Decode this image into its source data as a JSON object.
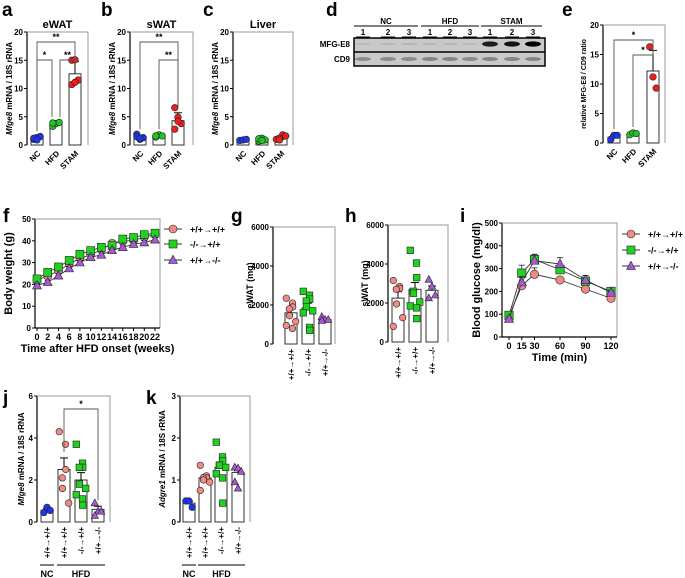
{
  "panel_letters": {
    "a": "a",
    "b": "b",
    "c": "c",
    "d": "d",
    "e": "e",
    "f": "f",
    "g": "g",
    "h": "h",
    "i": "i",
    "j": "j",
    "k": "k"
  },
  "colors": {
    "NC": "#1f35e8",
    "HFD": "#22c322",
    "STAM": "#ee1f1a",
    "wt_wt": "#f08a86",
    "ko_wt": "#1fd21f",
    "wt_ko": "#a45ad2"
  },
  "blot": {
    "groups": [
      "NC",
      "HFD",
      "STAM"
    ],
    "lanes": [
      "1",
      "2",
      "3",
      "1",
      "2",
      "3",
      "1",
      "2",
      "3"
    ],
    "rows": [
      "MFG-E8",
      "CD9"
    ],
    "mfge8_band_intensity": [
      0.08,
      0.1,
      0.1,
      0.1,
      0.1,
      0.08,
      0.85,
      0.9,
      1.0
    ],
    "cd9_band_intensity": [
      0.4,
      0.4,
      0.4,
      0.45,
      0.45,
      0.4,
      0.45,
      0.45,
      0.45
    ]
  },
  "chart_data": [
    {
      "id": "a",
      "type": "bar",
      "title": "eWAT",
      "ylabel_gene": "Mfge8",
      "ylabel_rest": " mRNA / 18S rRNA",
      "ylim": [
        0,
        20
      ],
      "yticks": [
        "0",
        "5",
        "10",
        "15",
        "20"
      ],
      "categories": [
        "NC",
        "HFD",
        "STAM"
      ],
      "means": [
        1.2,
        3.7,
        12.6
      ],
      "errors": [
        0.2,
        0.2,
        2.2
      ],
      "points": [
        [
          1.0,
          1.3,
          1.5,
          1.2,
          0.9
        ],
        [
          3.3,
          3.8,
          4.0,
          3.9
        ],
        [
          15.0,
          15.1,
          11.5,
          10.7,
          11.1
        ]
      ],
      "significance": [
        {
          "from": 0,
          "to": 2,
          "label": "**"
        },
        {
          "from": 0,
          "to": 1,
          "label": "*"
        },
        {
          "from": 1,
          "to": 2,
          "label": "**"
        }
      ]
    },
    {
      "id": "b",
      "type": "bar",
      "title": "sWAT",
      "ylabel_gene": "Mfge8",
      "ylabel_rest": " mRNA / 18S rRNA",
      "ylim": [
        0,
        20
      ],
      "yticks": [
        "0",
        "5",
        "10",
        "15",
        "20"
      ],
      "categories": [
        "NC",
        "HFD",
        "STAM"
      ],
      "means": [
        1.4,
        1.6,
        4.3
      ],
      "errors": [
        0.3,
        0.1,
        1.4
      ],
      "points": [
        [
          1.9,
          1.0,
          1.3,
          1.5,
          1.2
        ],
        [
          1.4,
          1.8,
          1.6,
          1.6
        ],
        [
          6.6,
          4.9,
          3.8,
          2.8,
          4.2
        ]
      ],
      "significance": [
        {
          "from": 0,
          "to": 2,
          "label": "**"
        },
        {
          "from": 1,
          "to": 2,
          "label": "**"
        }
      ]
    },
    {
      "id": "c",
      "type": "bar",
      "title": "Liver",
      "ylabel_gene": "Mfge8",
      "ylabel_rest": " mRNA / 18S rRNA",
      "ylim": [
        0,
        20
      ],
      "yticks": [
        "0",
        "5",
        "10",
        "15",
        "20"
      ],
      "categories": [
        "NC",
        "HFD",
        "STAM"
      ],
      "means": [
        0.9,
        0.9,
        1.3
      ],
      "errors": [
        0.1,
        0.2,
        0.3
      ],
      "points": [
        [
          0.8,
          0.9,
          1.0
        ],
        [
          0.7,
          1.2,
          0.9,
          1.1,
          0.8
        ],
        [
          1.0,
          1.5,
          1.8,
          1.2,
          0.9,
          1.6
        ]
      ],
      "significance": []
    },
    {
      "id": "e",
      "type": "bar",
      "title": "",
      "ylabel_gene": "",
      "ylabel_rest": "relative MFG-E8 / CD9 ratio",
      "ylim": [
        0,
        20
      ],
      "yticks": [
        "0",
        "5",
        "10",
        "15",
        "20"
      ],
      "categories": [
        "NC",
        "HFD",
        "STAM"
      ],
      "means": [
        1.0,
        1.5,
        12.2
      ],
      "errors": [
        0.3,
        0.2,
        3.5
      ],
      "points": [
        [
          0.6,
          1.3,
          1.3
        ],
        [
          1.4,
          1.7,
          1.6
        ],
        [
          16.3,
          11.2,
          9.3
        ]
      ],
      "significance": [
        {
          "from": 0,
          "to": 2,
          "label": "*"
        },
        {
          "from": 1,
          "to": 2,
          "label": "*"
        }
      ]
    },
    {
      "id": "f",
      "type": "line",
      "xlabel": "Time after HFD onset (weeks)",
      "ylabel": "Body weight (g)",
      "xlim": [
        0,
        22
      ],
      "ylim": [
        0,
        50
      ],
      "xticks": [
        "0",
        "2",
        "4",
        "6",
        "8",
        "10",
        "12",
        "14",
        "16",
        "18",
        "20",
        "22"
      ],
      "yticks": [
        "0",
        "10",
        "20",
        "30",
        "40",
        "50"
      ],
      "x": [
        0,
        2,
        4,
        6,
        8,
        10,
        12,
        14,
        16,
        18,
        20,
        22
      ],
      "series": [
        {
          "name": "+/+→+/+",
          "marker": "circle",
          "color_key": "wt_wt",
          "values": [
            22,
            23.8,
            26.2,
            29.3,
            32,
            33.5,
            36,
            38.8,
            39.8,
            40.2,
            41.6,
            43
          ],
          "errors": [
            0.8,
            0.8,
            1,
            1,
            1,
            1.2,
            1.2,
            1.5,
            1.3,
            1.3,
            1.3,
            1.2
          ]
        },
        {
          "name": "-/-→+/+",
          "marker": "square",
          "color_key": "ko_wt",
          "values": [
            22.5,
            25.5,
            28,
            31,
            33.8,
            35.5,
            37,
            37.8,
            40.8,
            41.5,
            42.8,
            43.5
          ],
          "errors": [
            0.8,
            0.8,
            0.9,
            1,
            1,
            1.2,
            1.2,
            1.2,
            1.2,
            1.2,
            1.2,
            1.2
          ]
        },
        {
          "name": "+/+→-/-",
          "marker": "triangle",
          "color_key": "wt_ko",
          "values": [
            19.5,
            21,
            24,
            27.3,
            30,
            32.5,
            33.5,
            35.7,
            37,
            38.5,
            39.2,
            40.5
          ],
          "errors": [
            0.8,
            0.8,
            0.9,
            1,
            1,
            1,
            1,
            1,
            1,
            1,
            1,
            1
          ]
        }
      ]
    },
    {
      "id": "g",
      "type": "bar",
      "ylabel": "eWAT (mg)",
      "ylim": [
        0,
        6000
      ],
      "yticks": [
        "0",
        "2000",
        "4000",
        "6000"
      ],
      "categories": [
        "+/+→+/+",
        "-/-→+/+",
        "+/+→-/-"
      ],
      "color_keys": [
        "wt_wt",
        "ko_wt",
        "wt_ko"
      ],
      "markers": [
        "circle",
        "square",
        "triangle"
      ],
      "means": [
        1600,
        1850,
        1250
      ],
      "errors": [
        220,
        250,
        50
      ],
      "points": [
        [
          2350,
          2100,
          1900,
          1800,
          1450,
          1150,
          950,
          800
        ],
        [
          2700,
          2500,
          2300,
          2200,
          1900,
          1700,
          1600,
          850,
          700
        ],
        [
          1400,
          1250,
          1250,
          1200
        ]
      ]
    },
    {
      "id": "h",
      "type": "bar",
      "ylabel": "sWAT (mg)",
      "ylim": [
        0,
        6000
      ],
      "yticks": [
        "0",
        "2000",
        "4000",
        "6000"
      ],
      "categories": [
        "+/+→+/+",
        "-/-→+/+",
        "+/+→-/-"
      ],
      "color_keys": [
        "wt_wt",
        "ko_wt",
        "wt_ko"
      ],
      "markers": [
        "circle",
        "square",
        "triangle"
      ],
      "means": [
        2250,
        2700,
        2650
      ],
      "errors": [
        330,
        350,
        220
      ],
      "points": [
        [
          3150,
          2850,
          2750,
          2700,
          1950,
          1250,
          800
        ],
        [
          4700,
          4050,
          3300,
          2600,
          2500,
          2050,
          1850,
          1750,
          1200
        ],
        [
          3200,
          2850,
          2400,
          2250
        ]
      ]
    },
    {
      "id": "i",
      "type": "line",
      "xlabel": "Time (min)",
      "ylabel": "Blood glucose (mg/dl)",
      "xlim": [
        0,
        120
      ],
      "ylim": [
        0,
        500
      ],
      "xticks": [
        "0",
        "15",
        "30",
        "60",
        "90",
        "120"
      ],
      "yticks": [
        "0",
        "100",
        "200",
        "300",
        "400",
        "500"
      ],
      "x": [
        0,
        15,
        30,
        60,
        90,
        120
      ],
      "series": [
        {
          "name": "+/+→+/+",
          "marker": "circle",
          "color_key": "wt_wt",
          "values": [
            90,
            225,
            275,
            250,
            210,
            170
          ],
          "errors": [
            8,
            15,
            28,
            12,
            12,
            8
          ]
        },
        {
          "name": "-/-→+/+",
          "marker": "square",
          "color_key": "ko_wt",
          "values": [
            95,
            280,
            340,
            295,
            245,
            200
          ],
          "errors": [
            8,
            35,
            22,
            20,
            25,
            10
          ]
        },
        {
          "name": "+/+→-/-",
          "marker": "triangle",
          "color_key": "wt_ko",
          "values": [
            80,
            240,
            335,
            320,
            250,
            195
          ],
          "errors": [
            8,
            25,
            28,
            28,
            20,
            10
          ]
        }
      ]
    },
    {
      "id": "j",
      "type": "bar",
      "ylabel_gene": "Mfge8",
      "ylabel_rest": " mRNA / 18S rRNA",
      "ylim": [
        0,
        6
      ],
      "yticks": [
        "0",
        "2",
        "4",
        "6"
      ],
      "categories": [
        "+/+→+/+",
        "+/+→+/+",
        "-/-→+/+",
        "+/+→-/-"
      ],
      "groups": [
        {
          "label": "NC",
          "from": 0,
          "to": 0
        },
        {
          "label": "HFD",
          "from": 1,
          "to": 3
        }
      ],
      "color_keys": [
        "NC",
        "wt_wt",
        "ko_wt",
        "wt_ko"
      ],
      "markers": [
        "circle",
        "circle",
        "square",
        "triangle"
      ],
      "means": [
        0.55,
        2.5,
        2.0,
        0.6
      ],
      "errors": [
        0.08,
        0.55,
        0.35,
        0.15
      ],
      "points": [
        [
          0.45,
          0.7,
          0.55
        ],
        [
          4.3,
          3.7,
          2.5,
          2.1,
          1.6,
          0.9
        ],
        [
          3.7,
          2.8,
          2.6,
          2.6,
          1.8,
          1.6,
          1.3,
          1.1,
          0.8
        ],
        [
          0.9,
          0.5,
          0.5,
          0.3
        ]
      ],
      "significance": [
        {
          "from": 1,
          "to": 3,
          "label": "*"
        }
      ]
    },
    {
      "id": "k",
      "type": "bar",
      "ylabel_gene": "Adgre1",
      "ylabel_rest": " mRNA / 18S rRNA",
      "ylim": [
        0,
        3
      ],
      "yticks": [
        "0",
        "1",
        "2",
        "3"
      ],
      "categories": [
        "+/+→+/+",
        "+/+→+/+",
        "-/-→+/+",
        "+/+→-/-"
      ],
      "groups": [
        {
          "label": "NC",
          "from": 0,
          "to": 0
        },
        {
          "label": "HFD",
          "from": 1,
          "to": 3
        }
      ],
      "color_keys": [
        "NC",
        "wt_wt",
        "ko_wt",
        "wt_ko"
      ],
      "markers": [
        "circle",
        "circle",
        "square",
        "triangle"
      ],
      "means": [
        0.45,
        1.05,
        1.3,
        1.18
      ],
      "errors": [
        0.05,
        0.07,
        0.13,
        0.1
      ],
      "points": [
        [
          0.5,
          0.5,
          0.35
        ],
        [
          1.35,
          1.1,
          1.05,
          1.05,
          1.0,
          0.95,
          0.75
        ],
        [
          1.9,
          1.55,
          1.45,
          1.35,
          1.35,
          1.3,
          1.15,
          1.05,
          0.45
        ],
        [
          1.3,
          1.28,
          1.2,
          0.95,
          0.8
        ]
      ],
      "significance": []
    }
  ]
}
